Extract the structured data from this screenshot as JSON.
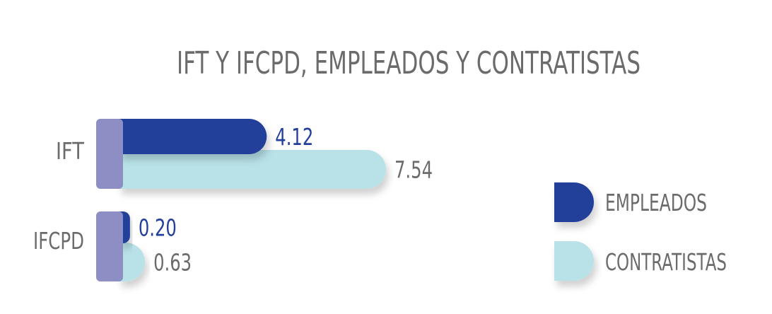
{
  "chart_data": {
    "type": "bar",
    "orientation": "horizontal",
    "title": "IFT Y IFCPD, EMPLEADOS Y CONTRATISTAS",
    "categories": [
      "IFT",
      "IFCPD"
    ],
    "series": [
      {
        "name": "EMPLEADOS",
        "values": [
          4.12,
          0.2
        ],
        "value_labels": [
          "4.12",
          "0.20"
        ],
        "color": "#233f9a"
      },
      {
        "name": "CONTRATISTAS",
        "values": [
          7.54,
          0.63
        ],
        "value_labels": [
          "7.54",
          "0.63"
        ],
        "color": "#b8e2e8"
      }
    ],
    "xlim": [
      0,
      7.54
    ],
    "grid": false,
    "legend": "right",
    "colors": {
      "axis_cap": "#8d8ec4",
      "label_empleados": "#233f9a",
      "label_contratistas": "#6b6b6b",
      "title": "#6b6b6b"
    }
  }
}
